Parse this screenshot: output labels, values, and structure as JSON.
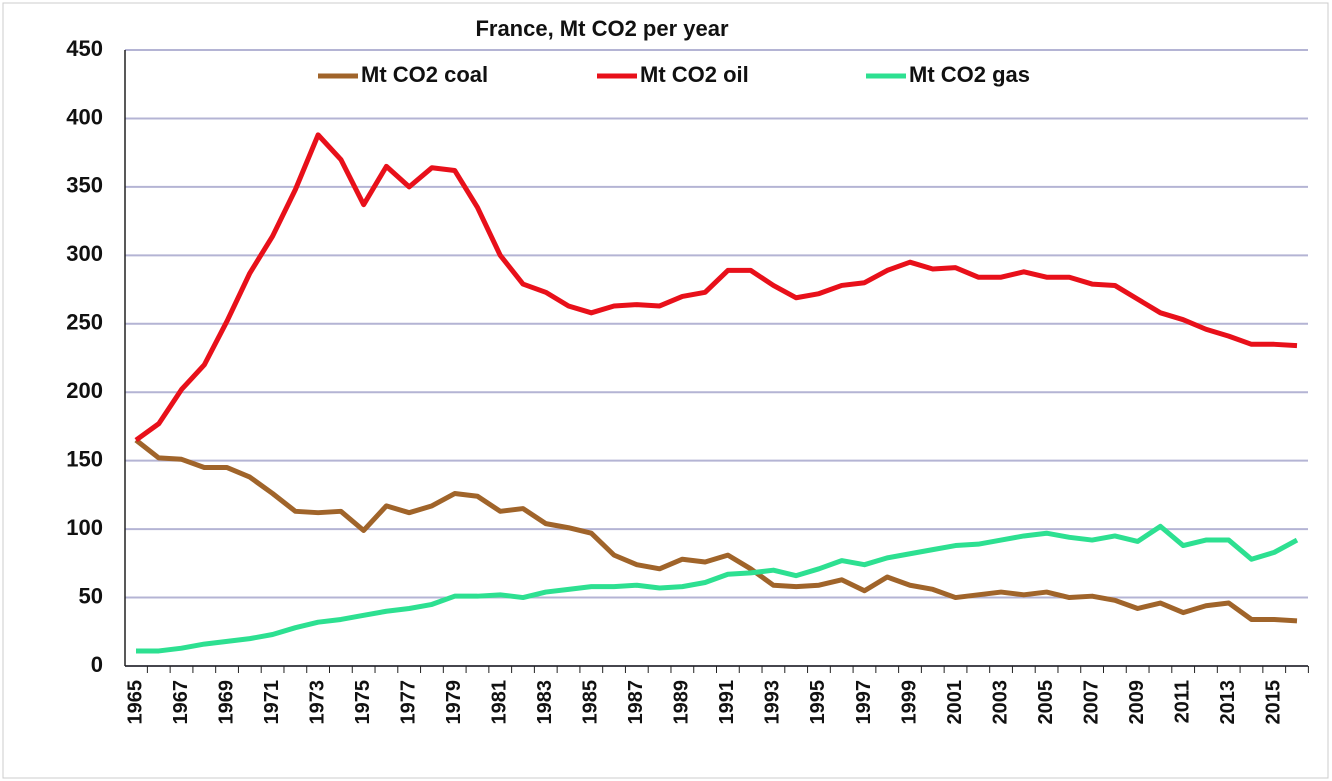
{
  "chart_data": {
    "type": "line",
    "title": "France, Mt CO2 per year",
    "categories": [
      "1965",
      null,
      "1967",
      null,
      "1969",
      null,
      "1971",
      null,
      "1973",
      null,
      "1975",
      null,
      "1977",
      null,
      "1979",
      null,
      "1981",
      null,
      "1983",
      null,
      "1985",
      null,
      "1987",
      null,
      "1989",
      null,
      "1991",
      null,
      "1993",
      null,
      "1995",
      null,
      "1997",
      null,
      "1999",
      null,
      "2001",
      null,
      "2003",
      null,
      "2005",
      null,
      "2007",
      null,
      "2009",
      null,
      "2011",
      null,
      "2013",
      null,
      "2015",
      null
    ],
    "series": [
      {
        "name": "Mt CO2 coal",
        "color": "#a0642a",
        "values": [
          165,
          152,
          151,
          145,
          145,
          138,
          126,
          113,
          112,
          113,
          99,
          117,
          112,
          117,
          126,
          124,
          113,
          115,
          104,
          101,
          97,
          81,
          74,
          71,
          78,
          76,
          81,
          71,
          59,
          58,
          59,
          63,
          55,
          65,
          59,
          56,
          50,
          52,
          54,
          52,
          54,
          50,
          51,
          48,
          42,
          46,
          39,
          44,
          46,
          34,
          34,
          33
        ]
      },
      {
        "name": "Mt CO2 oil",
        "color": "#e8101a",
        "values": [
          165,
          177,
          202,
          220,
          252,
          287,
          314,
          348,
          388,
          370,
          337,
          365,
          350,
          364,
          362,
          335,
          300,
          279,
          273,
          263,
          258,
          263,
          264,
          263,
          270,
          273,
          289,
          289,
          278,
          269,
          272,
          278,
          280,
          289,
          295,
          290,
          291,
          284,
          284,
          288,
          284,
          284,
          279,
          278,
          268,
          258,
          253,
          246,
          241,
          235,
          235,
          234
        ]
      },
      {
        "name": "Mt CO2 gas",
        "color": "#2de091",
        "values": [
          11,
          11,
          13,
          16,
          18,
          20,
          23,
          28,
          32,
          34,
          37,
          40,
          42,
          45,
          51,
          51,
          52,
          50,
          54,
          56,
          58,
          58,
          59,
          57,
          58,
          61,
          67,
          68,
          70,
          66,
          71,
          77,
          74,
          79,
          82,
          85,
          88,
          89,
          92,
          95,
          97,
          94,
          92,
          95,
          91,
          102,
          88,
          92,
          92,
          78,
          83,
          92
        ]
      }
    ],
    "ylim": [
      0,
      450
    ],
    "yticks": [
      0,
      50,
      100,
      150,
      200,
      250,
      300,
      350,
      400,
      450
    ],
    "grid": true,
    "legend": "top"
  }
}
